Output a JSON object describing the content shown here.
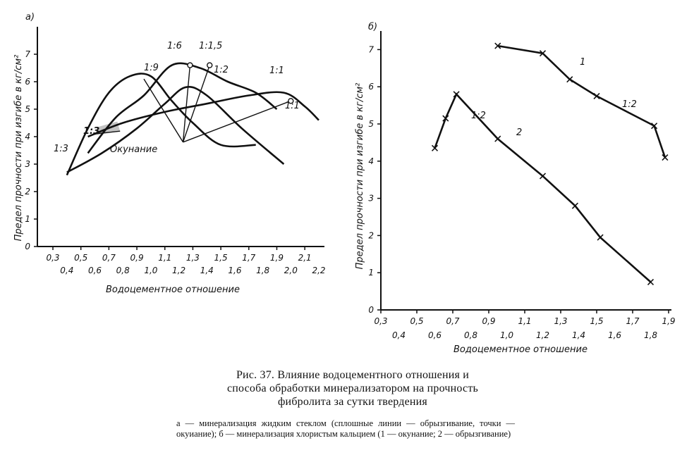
{
  "chart_data": [
    {
      "panel": "a",
      "panel_label": "а)",
      "type": "line",
      "ylabel": "Предел прочности при изгибе в кг/см²",
      "xlabel": "Водоцементное отношение",
      "ylim": [
        0,
        8
      ],
      "xlim": [
        0.3,
        2.2
      ],
      "yticks": [
        "0",
        "1",
        "2",
        "3",
        "4",
        "5",
        "6",
        "7"
      ],
      "xticks_upper": [
        "0,3",
        "0,5",
        "0,7",
        "0,9",
        "1,1",
        "1,3",
        "1,5",
        "1,7",
        "1,9",
        "2,1"
      ],
      "xticks_lower": [
        "0,4",
        "0,6",
        "0,8",
        "1,0",
        "1,2",
        "1,4",
        "1,6",
        "1,8",
        "2,0",
        "2,2"
      ],
      "annotation": "Окунание",
      "series": [
        {
          "name": "1:3",
          "style": "solid",
          "x": [
            0.4,
            0.55,
            0.7,
            0.85,
            1.0,
            1.15,
            1.3,
            1.5,
            1.75
          ],
          "y": [
            2.6,
            4.3,
            5.6,
            6.2,
            6.2,
            5.3,
            4.5,
            3.7,
            3.7
          ]
        },
        {
          "name": "1:2",
          "style": "solid",
          "x": [
            0.55,
            0.75,
            0.95,
            1.15,
            1.35,
            1.55,
            1.75,
            1.9
          ],
          "y": [
            3.4,
            4.7,
            5.5,
            6.6,
            6.5,
            6.0,
            5.6,
            5.0
          ]
        },
        {
          "name": "1:1",
          "style": "solid",
          "x": [
            0.55,
            0.8,
            1.1,
            1.4,
            1.7,
            1.95,
            2.1,
            2.2
          ],
          "y": [
            4.0,
            4.5,
            4.9,
            5.2,
            5.5,
            5.6,
            5.1,
            4.6
          ]
        },
        {
          "name": "",
          "style": "solid",
          "x": [
            0.4,
            0.65,
            0.9,
            1.1,
            1.25,
            1.4,
            1.65,
            1.95
          ],
          "y": [
            2.7,
            3.4,
            4.3,
            5.2,
            5.8,
            5.5,
            4.3,
            3.0
          ]
        },
        {
          "name": "1:3",
          "style": "thin",
          "x": [
            0.6,
            0.78
          ],
          "y": [
            4.1,
            4.2
          ]
        },
        {
          "name": "1:9",
          "style": "thin",
          "x": [
            0.95,
            1.23
          ],
          "y": [
            6.1,
            3.8
          ]
        },
        {
          "name": "1:6",
          "style": "thin",
          "x": [
            1.23,
            1.28
          ],
          "y": [
            3.8,
            6.6
          ]
        },
        {
          "name": "1:1,5",
          "style": "thin",
          "x": [
            1.23,
            1.42
          ],
          "y": [
            3.8,
            6.6
          ]
        },
        {
          "name": "1:1",
          "style": "thin",
          "x": [
            1.23,
            2.0
          ],
          "y": [
            3.8,
            5.3
          ]
        }
      ],
      "series_labels": [
        "1:3",
        "1:9",
        "1:6",
        "1:1,5",
        "1:2",
        "1:1",
        "1:1",
        "1:3"
      ]
    },
    {
      "panel": "b",
      "panel_label": "б)",
      "type": "line",
      "ylabel": "Предел прочности при изгибе в кг/см²",
      "xlabel": "Водоцементное отношение",
      "ylim": [
        0,
        7.5
      ],
      "xlim": [
        0.3,
        1.9
      ],
      "yticks": [
        "0",
        "1",
        "2",
        "3",
        "4",
        "5",
        "6",
        "7"
      ],
      "xticks_upper": [
        "0,3",
        "0,5",
        "0,7",
        "0,9",
        "1,1",
        "1,3",
        "1,5",
        "1,7",
        "1,9"
      ],
      "xticks_lower": [
        "0,4",
        "0,6",
        "0,8",
        "1,0",
        "1,2",
        "1,4",
        "1,6",
        "1,8"
      ],
      "series": [
        {
          "name": "1",
          "x": [
            0.95,
            1.2,
            1.35,
            1.5,
            1.82,
            1.88
          ],
          "y": [
            7.1,
            6.9,
            6.2,
            5.75,
            4.95,
            4.1
          ]
        },
        {
          "name": "2",
          "x": [
            0.6,
            0.66,
            0.72,
            0.95,
            1.2,
            1.38,
            1.52,
            1.8
          ],
          "y": [
            4.35,
            5.15,
            5.8,
            4.6,
            3.6,
            2.8,
            1.95,
            0.75
          ]
        }
      ],
      "series_labels": [
        "1",
        "1:2",
        "1:2",
        "2"
      ]
    }
  ],
  "caption": {
    "title_line1": "Рис. 37. Влияние водоцементного отношения и",
    "title_line2": "способа обработки минерализатором на прочность",
    "title_line3": "фибролита за сутки твердения",
    "legend": "а — минерализация жидким стеклом (сплошные линии — обрызгивание, точки — окуиание); б — минерализация хлористым кальцием (1 — окунание; 2 — обрызгивание)"
  }
}
